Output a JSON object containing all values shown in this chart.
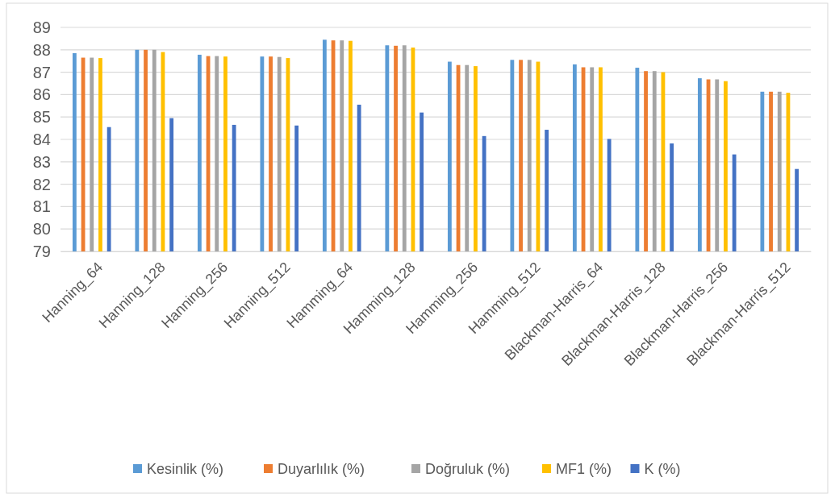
{
  "chart_data": {
    "type": "bar",
    "categories": [
      "Hanning_64",
      "Hanning_128",
      "Hanning_256",
      "Hanning_512",
      "Hamming_64",
      "Hamming_128",
      "Hamming_256",
      "Hamming_512",
      "Blackman-Harris_64",
      "Blackman-Harris_128",
      "Blackman-Harris_256",
      "Blackman-Harris_512"
    ],
    "series": [
      {
        "name": "Kesinlik (%)",
        "color": "#5b9bd5",
        "values": [
          87.85,
          88.0,
          87.78,
          87.7,
          88.45,
          88.2,
          87.47,
          87.55,
          87.35,
          87.2,
          86.73,
          86.13
        ]
      },
      {
        "name": "Duyarlılık (%)",
        "color": "#ed7d31",
        "values": [
          87.65,
          88.0,
          87.72,
          87.7,
          88.42,
          88.18,
          87.32,
          87.55,
          87.22,
          87.05,
          86.68,
          86.13
        ]
      },
      {
        "name": "Doğruluk (%)",
        "color": "#a5a5a5",
        "values": [
          87.65,
          88.0,
          87.72,
          87.68,
          88.42,
          88.2,
          87.32,
          87.55,
          87.22,
          87.05,
          86.68,
          86.13
        ]
      },
      {
        "name": "MF1 (%)",
        "color": "#ffc000",
        "values": [
          87.63,
          87.9,
          87.7,
          87.63,
          88.4,
          88.1,
          87.27,
          87.47,
          87.22,
          87.0,
          86.6,
          86.08
        ]
      },
      {
        "name": "K (%)",
        "color": "#4472c4",
        "values": [
          84.55,
          84.95,
          84.65,
          84.62,
          85.55,
          85.2,
          84.15,
          84.43,
          84.02,
          83.82,
          83.33,
          82.68
        ]
      }
    ],
    "ylim": [
      79,
      89
    ],
    "yticks": [
      79,
      80,
      81,
      82,
      83,
      84,
      85,
      86,
      87,
      88,
      89
    ],
    "grid": "y",
    "legend": "bottom"
  }
}
